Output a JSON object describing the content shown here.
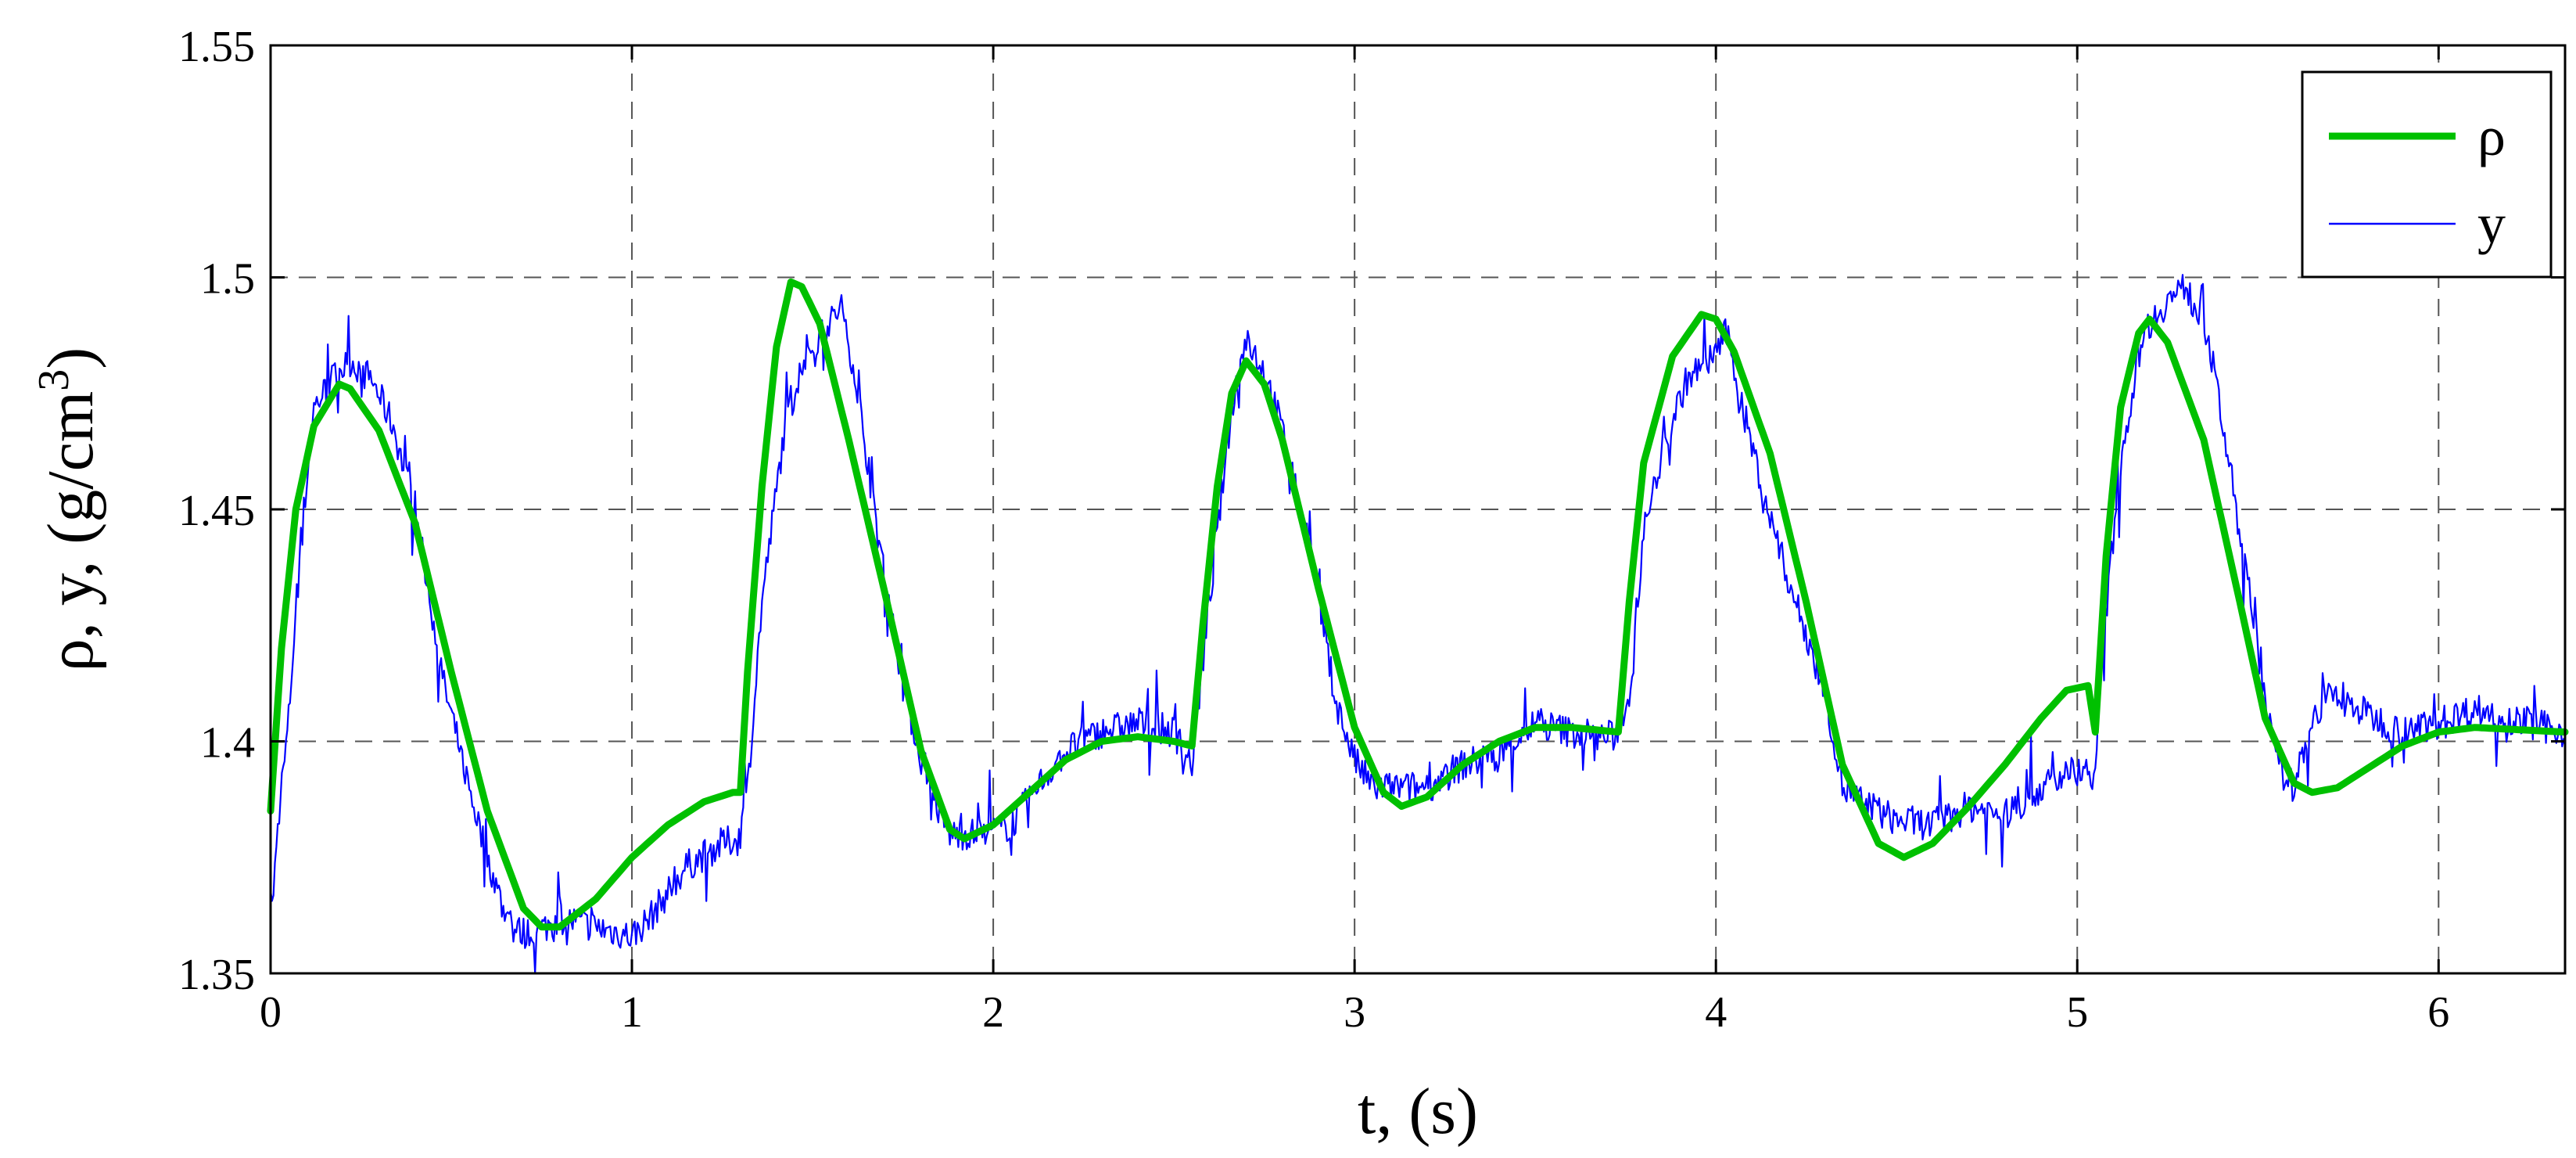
{
  "chart_data": {
    "type": "line",
    "xlabel": "t, (s)",
    "ylabel": "ρ, y,  (g/cm",
    "ylabel_sup": "3",
    "ylabel_close": ")",
    "xlim": [
      0,
      6.35
    ],
    "ylim": [
      1.35,
      1.55
    ],
    "xticks": [
      0,
      1,
      2,
      3,
      4,
      5,
      6
    ],
    "xtick_labels": [
      "0",
      "1",
      "2",
      "3",
      "4",
      "5",
      "6"
    ],
    "yticks": [
      1.35,
      1.4,
      1.45,
      1.5,
      1.55
    ],
    "ytick_labels": [
      "1.35",
      "1.4",
      "1.45",
      "1.5",
      "1.55"
    ],
    "grid": true,
    "legend": "top-right",
    "series": [
      {
        "name": "ρ",
        "color": "#00c000",
        "points": [
          [
            0.0,
            1.385
          ],
          [
            0.03,
            1.42
          ],
          [
            0.07,
            1.45
          ],
          [
            0.12,
            1.468
          ],
          [
            0.19,
            1.477
          ],
          [
            0.22,
            1.476
          ],
          [
            0.3,
            1.467
          ],
          [
            0.4,
            1.447
          ],
          [
            0.5,
            1.415
          ],
          [
            0.6,
            1.385
          ],
          [
            0.7,
            1.364
          ],
          [
            0.75,
            1.36
          ],
          [
            0.8,
            1.36
          ],
          [
            0.9,
            1.366
          ],
          [
            1.0,
            1.375
          ],
          [
            1.1,
            1.382
          ],
          [
            1.2,
            1.387
          ],
          [
            1.28,
            1.389
          ],
          [
            1.3,
            1.389
          ],
          [
            1.32,
            1.415
          ],
          [
            1.36,
            1.455
          ],
          [
            1.4,
            1.485
          ],
          [
            1.44,
            1.499
          ],
          [
            1.47,
            1.498
          ],
          [
            1.52,
            1.49
          ],
          [
            1.6,
            1.465
          ],
          [
            1.7,
            1.432
          ],
          [
            1.8,
            1.398
          ],
          [
            1.88,
            1.381
          ],
          [
            1.92,
            1.379
          ],
          [
            2.0,
            1.382
          ],
          [
            2.1,
            1.389
          ],
          [
            2.2,
            1.396
          ],
          [
            2.3,
            1.4
          ],
          [
            2.4,
            1.401
          ],
          [
            2.5,
            1.4
          ],
          [
            2.55,
            1.399
          ],
          [
            2.58,
            1.425
          ],
          [
            2.62,
            1.455
          ],
          [
            2.66,
            1.475
          ],
          [
            2.7,
            1.482
          ],
          [
            2.75,
            1.477
          ],
          [
            2.8,
            1.465
          ],
          [
            2.9,
            1.433
          ],
          [
            3.0,
            1.403
          ],
          [
            3.08,
            1.389
          ],
          [
            3.13,
            1.386
          ],
          [
            3.2,
            1.388
          ],
          [
            3.3,
            1.395
          ],
          [
            3.4,
            1.4
          ],
          [
            3.5,
            1.403
          ],
          [
            3.6,
            1.403
          ],
          [
            3.73,
            1.402
          ],
          [
            3.76,
            1.43
          ],
          [
            3.8,
            1.46
          ],
          [
            3.88,
            1.483
          ],
          [
            3.96,
            1.492
          ],
          [
            4.0,
            1.491
          ],
          [
            4.05,
            1.484
          ],
          [
            4.15,
            1.462
          ],
          [
            4.25,
            1.43
          ],
          [
            4.35,
            1.395
          ],
          [
            4.45,
            1.378
          ],
          [
            4.52,
            1.375
          ],
          [
            4.6,
            1.378
          ],
          [
            4.7,
            1.386
          ],
          [
            4.8,
            1.395
          ],
          [
            4.9,
            1.405
          ],
          [
            4.97,
            1.411
          ],
          [
            5.03,
            1.412
          ],
          [
            5.05,
            1.402
          ],
          [
            5.08,
            1.44
          ],
          [
            5.12,
            1.472
          ],
          [
            5.17,
            1.488
          ],
          [
            5.2,
            1.491
          ],
          [
            5.25,
            1.486
          ],
          [
            5.35,
            1.465
          ],
          [
            5.45,
            1.43
          ],
          [
            5.52,
            1.405
          ],
          [
            5.6,
            1.391
          ],
          [
            5.65,
            1.389
          ],
          [
            5.72,
            1.39
          ],
          [
            5.8,
            1.394
          ],
          [
            5.9,
            1.399
          ],
          [
            6.0,
            1.402
          ],
          [
            6.1,
            1.403
          ],
          [
            6.35,
            1.402
          ]
        ]
      },
      {
        "name": "y",
        "color": "#0000ff",
        "noise": true,
        "points": [
          [
            0.0,
            1.36
          ],
          [
            0.02,
            1.38
          ],
          [
            0.05,
            1.405
          ],
          [
            0.08,
            1.44
          ],
          [
            0.12,
            1.472
          ],
          [
            0.17,
            1.478
          ],
          [
            0.22,
            1.482
          ],
          [
            0.28,
            1.478
          ],
          [
            0.34,
            1.468
          ],
          [
            0.42,
            1.442
          ],
          [
            0.48,
            1.412
          ],
          [
            0.55,
            1.39
          ],
          [
            0.6,
            1.375
          ],
          [
            0.66,
            1.36
          ],
          [
            0.72,
            1.358
          ],
          [
            0.8,
            1.362
          ],
          [
            0.9,
            1.36
          ],
          [
            1.0,
            1.358
          ],
          [
            1.05,
            1.362
          ],
          [
            1.15,
            1.373
          ],
          [
            1.25,
            1.378
          ],
          [
            1.3,
            1.379
          ],
          [
            1.32,
            1.39
          ],
          [
            1.36,
            1.43
          ],
          [
            1.42,
            1.466
          ],
          [
            1.48,
            1.484
          ],
          [
            1.53,
            1.488
          ],
          [
            1.58,
            1.494
          ],
          [
            1.62,
            1.478
          ],
          [
            1.68,
            1.445
          ],
          [
            1.75,
            1.412
          ],
          [
            1.82,
            1.39
          ],
          [
            1.88,
            1.38
          ],
          [
            1.95,
            1.38
          ],
          [
            2.05,
            1.382
          ],
          [
            2.12,
            1.39
          ],
          [
            2.2,
            1.398
          ],
          [
            2.3,
            1.402
          ],
          [
            2.4,
            1.404
          ],
          [
            2.5,
            1.402
          ],
          [
            2.55,
            1.395
          ],
          [
            2.57,
            1.41
          ],
          [
            2.62,
            1.445
          ],
          [
            2.66,
            1.472
          ],
          [
            2.7,
            1.487
          ],
          [
            2.75,
            1.48
          ],
          [
            2.8,
            1.467
          ],
          [
            2.88,
            1.44
          ],
          [
            2.95,
            1.408
          ],
          [
            3.0,
            1.396
          ],
          [
            3.05,
            1.39
          ],
          [
            3.12,
            1.39
          ],
          [
            3.2,
            1.39
          ],
          [
            3.3,
            1.395
          ],
          [
            3.4,
            1.397
          ],
          [
            3.5,
            1.404
          ],
          [
            3.6,
            1.402
          ],
          [
            3.72,
            1.401
          ],
          [
            3.76,
            1.41
          ],
          [
            3.8,
            1.445
          ],
          [
            3.86,
            1.465
          ],
          [
            3.92,
            1.478
          ],
          [
            3.98,
            1.482
          ],
          [
            4.03,
            1.488
          ],
          [
            4.08,
            1.47
          ],
          [
            4.15,
            1.448
          ],
          [
            4.22,
            1.43
          ],
          [
            4.3,
            1.412
          ],
          [
            4.35,
            1.39
          ],
          [
            4.42,
            1.386
          ],
          [
            4.5,
            1.383
          ],
          [
            4.6,
            1.382
          ],
          [
            4.7,
            1.386
          ],
          [
            4.8,
            1.384
          ],
          [
            4.9,
            1.39
          ],
          [
            5.0,
            1.394
          ],
          [
            5.05,
            1.393
          ],
          [
            5.07,
            1.42
          ],
          [
            5.12,
            1.46
          ],
          [
            5.18,
            1.488
          ],
          [
            5.25,
            1.495
          ],
          [
            5.3,
            1.498
          ],
          [
            5.36,
            1.488
          ],
          [
            5.42,
            1.46
          ],
          [
            5.5,
            1.42
          ],
          [
            5.55,
            1.395
          ],
          [
            5.6,
            1.39
          ],
          [
            5.65,
            1.405
          ],
          [
            5.7,
            1.41
          ],
          [
            5.8,
            1.406
          ],
          [
            5.9,
            1.402
          ],
          [
            6.0,
            1.404
          ],
          [
            6.1,
            1.407
          ],
          [
            6.2,
            1.405
          ],
          [
            6.35,
            1.402
          ]
        ]
      }
    ]
  }
}
